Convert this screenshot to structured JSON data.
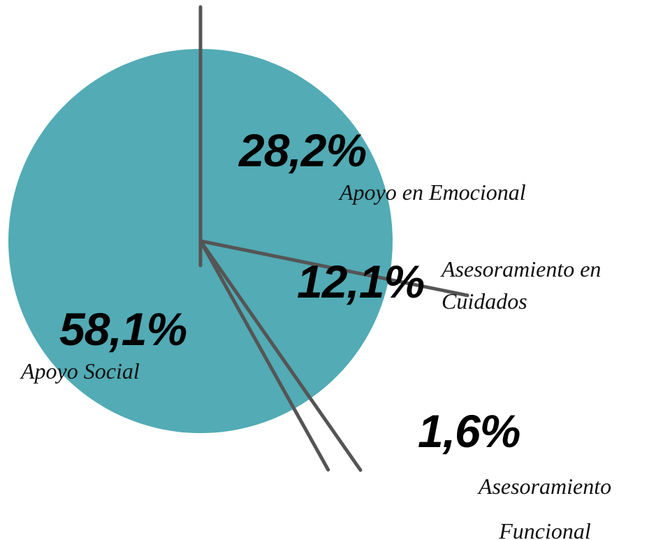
{
  "chart_data": {
    "type": "pie",
    "categories": [
      "Apoyo en Emocional",
      "Asesoramiento en Cuidados",
      "Asesoramiento Funcional",
      "Apoyo Social"
    ],
    "values": [
      28.2,
      12.1,
      1.6,
      58.1
    ],
    "value_labels": [
      "28,2%",
      "12,1%",
      "1,6%",
      "58,1%"
    ],
    "color": "#52abb5"
  }
}
